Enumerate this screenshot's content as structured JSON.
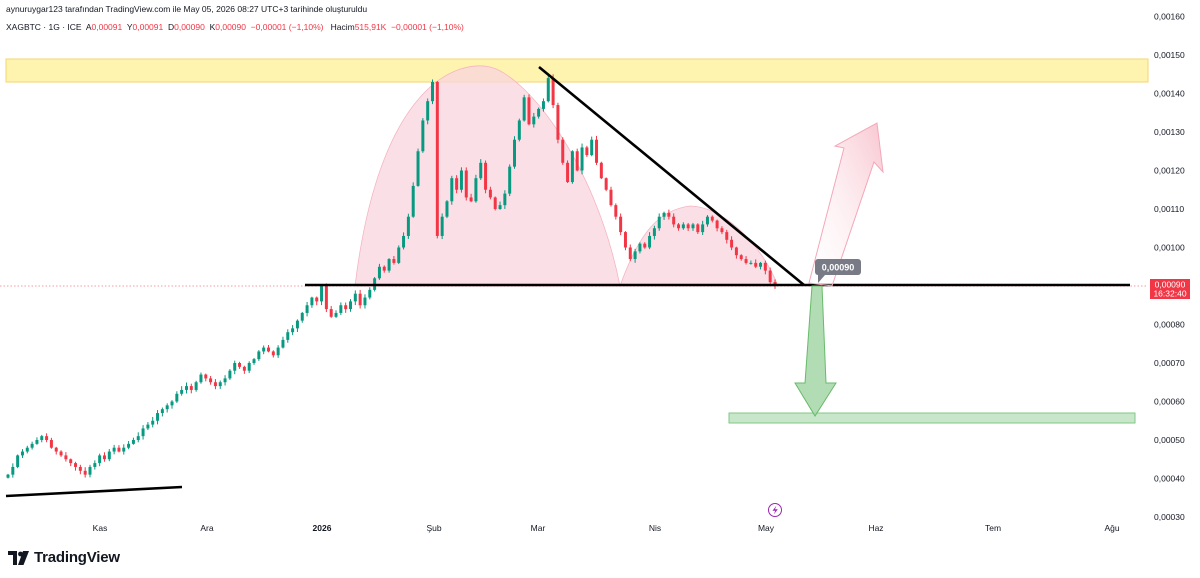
{
  "attribution": "aynuruygar123 tarafından TradingView.com ile May 05, 2026 08:27 UTC+3 tarihinde oluşturuldu",
  "legend": {
    "symbol": "XAGBTC · 1G · ICE",
    "open_label": "A",
    "open": "0,00091",
    "high_label": "Y",
    "high": "0,00091",
    "low_label": "D",
    "low": "0,00090",
    "close_label": "K",
    "close": "0,00090",
    "change": "−0,00001 (−1,10%)",
    "volume_label": "Hacim",
    "volume": "515,91K",
    "volume_change": "−0,00001 (−1,10%)"
  },
  "colors": {
    "up": "#089981",
    "down": "#f23645",
    "pattern_fill": "#fad4de",
    "resistance_zone": "#fff3b0",
    "target_zone": "#c8e6c9",
    "up_arrow": "#f8c6d0",
    "down_arrow": "#a5d6a7"
  },
  "price_label": {
    "value": "0,00090",
    "countdown": "16:32:40"
  },
  "annotation_label": "0,00090",
  "logo_text": "TradingView",
  "chart_data": {
    "type": "candlestick",
    "symbol": "XAGBTC",
    "interval": "1G",
    "ylim": [
      0.0003,
      0.0016
    ],
    "yticks": [
      "0,00160",
      "0,00150",
      "0,00140",
      "0,00130",
      "0,00120",
      "0,00110",
      "0,00100",
      "0,00080",
      "0,00070",
      "0,00060",
      "0,00050",
      "0,00040",
      "0,00030"
    ],
    "ytick_values": [
      0.0016,
      0.0015,
      0.0014,
      0.0013,
      0.0012,
      0.0011,
      0.001,
      0.0008,
      0.0007,
      0.0006,
      0.0005,
      0.0004,
      0.0003
    ],
    "xtick_labels": [
      "Kas",
      "Ara",
      "2026",
      "Şub",
      "Mar",
      "Nis",
      "May",
      "Haz",
      "Tem",
      "Ağu"
    ],
    "xtick_positions": [
      100,
      207,
      322,
      434,
      538,
      655,
      766,
      876,
      993,
      1112
    ],
    "last_price": 0.0009,
    "closes": [
      0.00041,
      0.00043,
      0.00046,
      0.00047,
      0.00048,
      0.00049,
      0.0005,
      0.00051,
      0.0005,
      0.00048,
      0.00047,
      0.00046,
      0.00045,
      0.00044,
      0.00043,
      0.00042,
      0.00041,
      0.00043,
      0.00044,
      0.00046,
      0.00045,
      0.00047,
      0.00048,
      0.00047,
      0.00048,
      0.00049,
      0.0005,
      0.00051,
      0.00053,
      0.00054,
      0.00055,
      0.00057,
      0.00058,
      0.00059,
      0.0006,
      0.00062,
      0.00063,
      0.00064,
      0.00063,
      0.00065,
      0.00067,
      0.00066,
      0.00065,
      0.00064,
      0.00065,
      0.00066,
      0.00068,
      0.0007,
      0.00069,
      0.00068,
      0.0007,
      0.00071,
      0.00073,
      0.00074,
      0.00073,
      0.00072,
      0.00074,
      0.00076,
      0.00078,
      0.00079,
      0.00081,
      0.00083,
      0.00085,
      0.00087,
      0.00086,
      0.0009,
      0.00084,
      0.00082,
      0.00083,
      0.00085,
      0.00084,
      0.00086,
      0.00088,
      0.00085,
      0.00087,
      0.00089,
      0.00092,
      0.00095,
      0.00094,
      0.00097,
      0.00096,
      0.001,
      0.00103,
      0.00108,
      0.00116,
      0.00125,
      0.00133,
      0.00138,
      0.00143,
      0.00103,
      0.00108,
      0.00112,
      0.00118,
      0.00115,
      0.0012,
      0.00113,
      0.00112,
      0.00118,
      0.00122,
      0.00115,
      0.00113,
      0.0011,
      0.00111,
      0.00114,
      0.00121,
      0.00128,
      0.00133,
      0.00139,
      0.00132,
      0.00134,
      0.00136,
      0.00138,
      0.00144,
      0.00137,
      0.00128,
      0.00122,
      0.00117,
      0.00125,
      0.0012,
      0.00126,
      0.00124,
      0.00128,
      0.00122,
      0.00118,
      0.00115,
      0.00111,
      0.00108,
      0.00104,
      0.001,
      0.00097,
      0.00099,
      0.00101,
      0.001,
      0.00103,
      0.00105,
      0.00108,
      0.00109,
      0.00108,
      0.00106,
      0.00105,
      0.00106,
      0.00105,
      0.00106,
      0.00104,
      0.00106,
      0.00108,
      0.00107,
      0.00105,
      0.00104,
      0.00102,
      0.001,
      0.00098,
      0.00097,
      0.00096,
      0.00096,
      0.00095,
      0.00096,
      0.00094,
      0.00091,
      0.0009
    ]
  }
}
